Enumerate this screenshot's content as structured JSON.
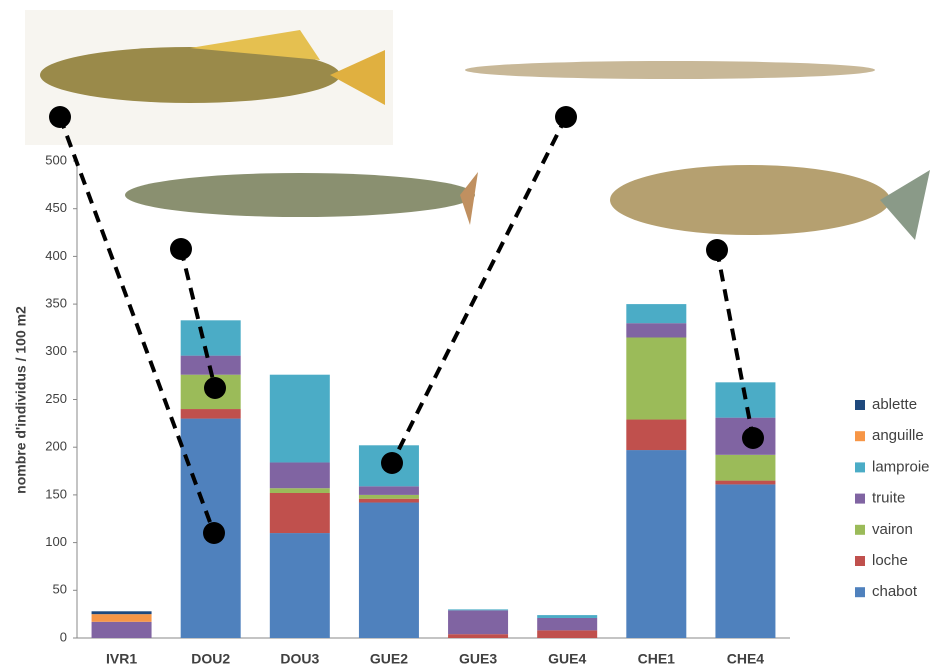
{
  "chart_data": {
    "type": "stacked_bar",
    "y_label": "nombre d'individus / 100 m2",
    "categories": [
      "IVR1",
      "DOU2",
      "DOU3",
      "GUE2",
      "GUE3",
      "GUE4",
      "CHE1",
      "CHE4"
    ],
    "series": [
      {
        "name": "chabot",
        "color": "#4f81bd",
        "values": [
          0,
          230,
          110,
          142,
          0,
          0,
          197,
          161
        ]
      },
      {
        "name": "loche",
        "color": "#c0504d",
        "values": [
          0,
          10,
          42,
          4,
          4,
          8,
          32,
          4
        ]
      },
      {
        "name": "vairon",
        "color": "#9bbb59",
        "values": [
          0,
          36,
          5,
          4,
          0,
          0,
          86,
          27
        ]
      },
      {
        "name": "truite",
        "color": "#8064a2",
        "values": [
          17,
          20,
          27,
          9,
          25,
          13,
          15,
          39
        ]
      },
      {
        "name": "lamproie",
        "color": "#4bacc6",
        "values": [
          0,
          37,
          92,
          43,
          1,
          3,
          20,
          37
        ]
      },
      {
        "name": "anguille",
        "color": "#f79646",
        "values": [
          8,
          0,
          0,
          0,
          0,
          0,
          0,
          0
        ]
      },
      {
        "name": "ablette",
        "color": "#1f497d",
        "values": [
          3,
          0,
          0,
          0,
          0,
          0,
          0,
          0
        ]
      }
    ],
    "ylim": [
      0,
      500
    ],
    "yticks": [
      0,
      50,
      100,
      150,
      200,
      250,
      300,
      350,
      400,
      450,
      500
    ],
    "legend": "right"
  }
}
